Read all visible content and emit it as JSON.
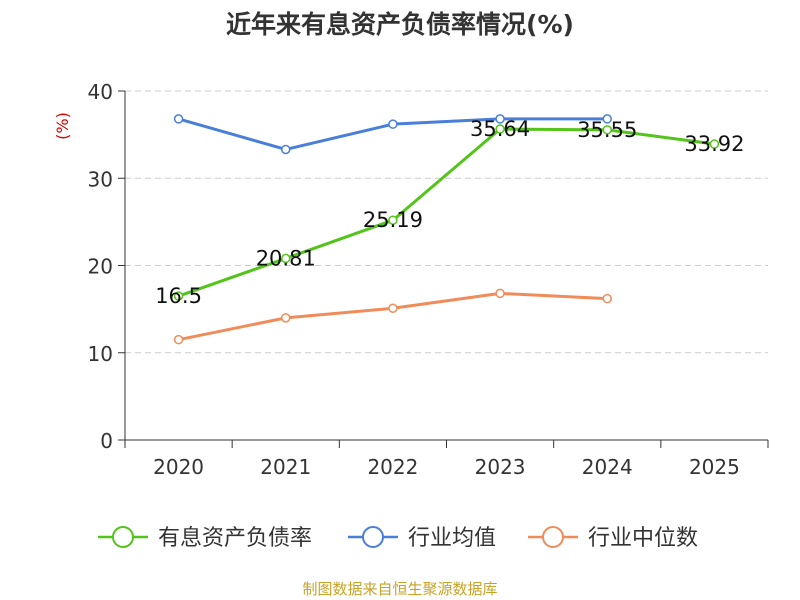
{
  "colors": {
    "asset_liability_ratio": "#52c41a",
    "industry_average": "#4a7fd9",
    "industry_median": "#f08c5a",
    "title": "#333333",
    "axis_unit": "#dd0000",
    "source": "#c9a227"
  },
  "chart_data": {
    "type": "line",
    "title": "近年来有息资产负债率情况(%)",
    "ylabel": "(%)",
    "xlabel": "",
    "ylim": [
      0,
      40
    ],
    "yticks": [
      0,
      10,
      20,
      30,
      40
    ],
    "categories": [
      "2020",
      "2021",
      "2022",
      "2023",
      "2024",
      "2025"
    ],
    "grid": true,
    "legend_position": "bottom",
    "series": [
      {
        "name": "有息资产负债率",
        "color_key": "asset_liability_ratio",
        "values": [
          16.5,
          20.81,
          25.19,
          35.64,
          35.55,
          33.92
        ],
        "labels": [
          "16.5",
          "20.81",
          "25.19",
          "35.64",
          "35.55",
          "33.92"
        ]
      },
      {
        "name": "行业均值",
        "color_key": "industry_average",
        "values": [
          36.8,
          33.3,
          36.2,
          36.8,
          36.8,
          null
        ]
      },
      {
        "name": "行业中位数",
        "color_key": "industry_median",
        "values": [
          11.5,
          14.0,
          15.1,
          16.8,
          16.2,
          null
        ]
      }
    ]
  },
  "source_note": "制图数据来自恒生聚源数据库"
}
